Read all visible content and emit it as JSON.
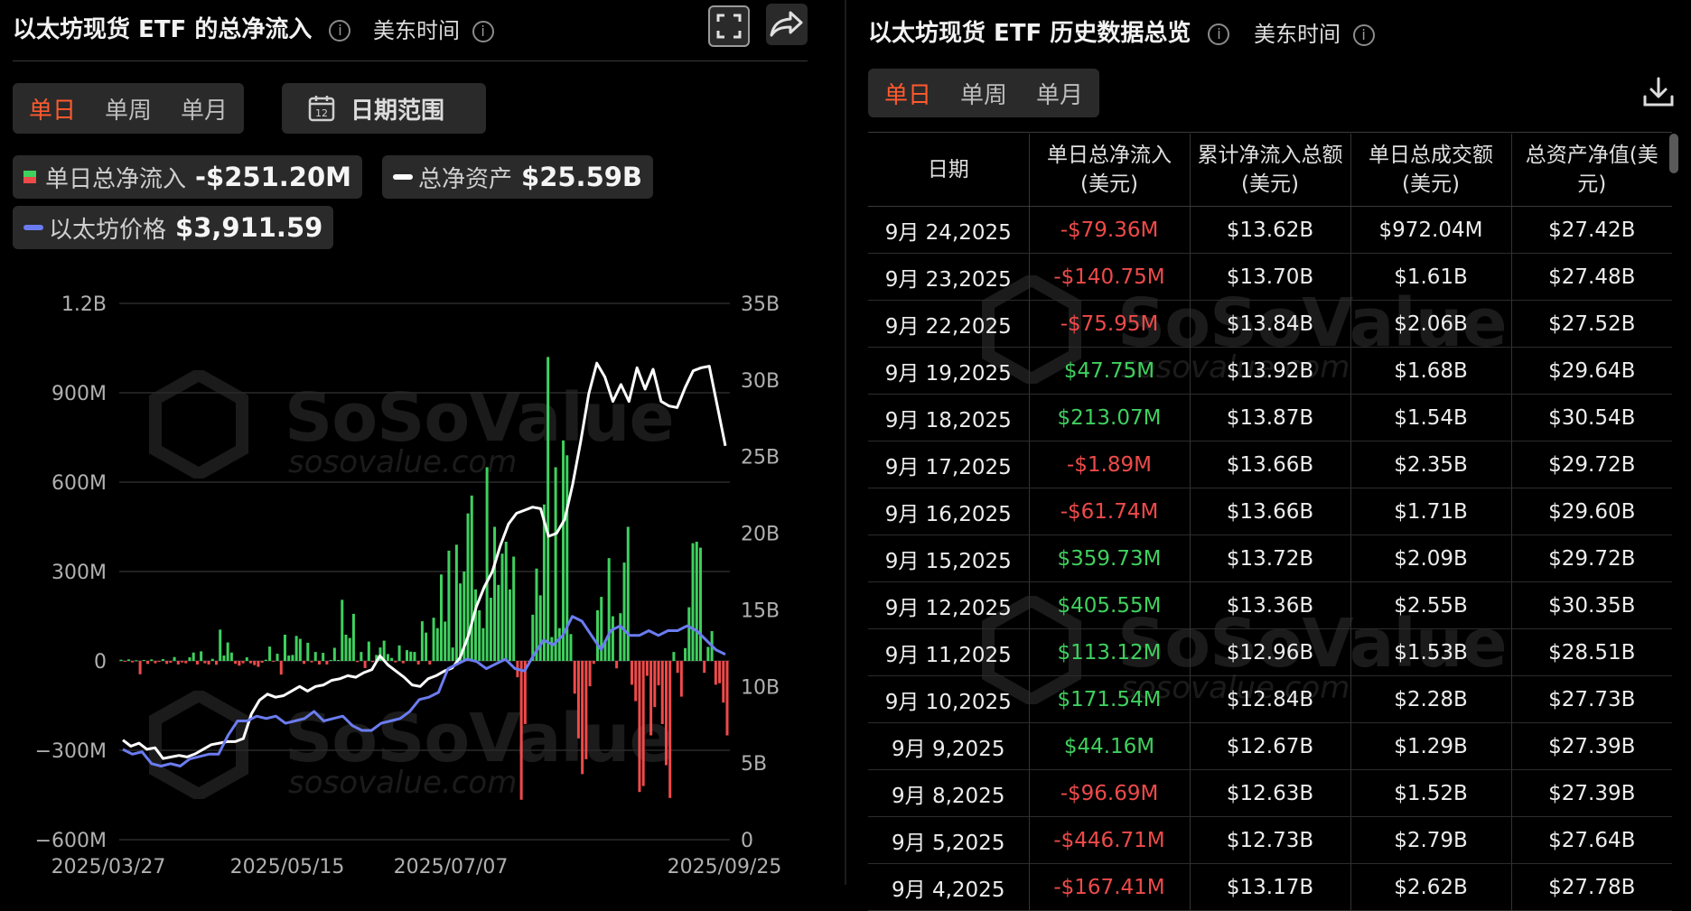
{
  "left": {
    "title": "以太坊现货 ETF 的总净流入",
    "timezone": "美东时间",
    "tabs": [
      "单日",
      "单周",
      "单月"
    ],
    "date_range_label": "日期范围",
    "calendar_icon_text": "12",
    "legend": {
      "inflow_label": "单日总净流入",
      "inflow_value": "-$251.20M",
      "assets_label": "总净资产",
      "assets_value": "$25.59B",
      "price_label": "以太坊价格",
      "price_value": "$3,911.59"
    },
    "watermark": {
      "brand": "SoSoValue",
      "url": "sosovalue.com"
    }
  },
  "right": {
    "title": "以太坊现货 ETF 历史数据总览",
    "timezone": "美东时间",
    "tabs": [
      "单日",
      "单周",
      "单月"
    ],
    "columns": [
      "日期",
      "单日总净流入(美元)",
      "累计净流入总额(美元)",
      "单日总成交额(美元)",
      "总资产净值(美元)"
    ],
    "rows": [
      [
        "9月 24,2025",
        "-$79.36M",
        "$13.62B",
        "$972.04M",
        "$27.42B"
      ],
      [
        "9月 23,2025",
        "-$140.75M",
        "$13.70B",
        "$1.61B",
        "$27.48B"
      ],
      [
        "9月 22,2025",
        "-$75.95M",
        "$13.84B",
        "$2.06B",
        "$27.52B"
      ],
      [
        "9月 19,2025",
        "$47.75M",
        "$13.92B",
        "$1.68B",
        "$29.64B"
      ],
      [
        "9月 18,2025",
        "$213.07M",
        "$13.87B",
        "$1.54B",
        "$30.54B"
      ],
      [
        "9月 17,2025",
        "-$1.89M",
        "$13.66B",
        "$2.35B",
        "$29.72B"
      ],
      [
        "9月 16,2025",
        "-$61.74M",
        "$13.66B",
        "$1.71B",
        "$29.60B"
      ],
      [
        "9月 15,2025",
        "$359.73M",
        "$13.72B",
        "$2.09B",
        "$29.72B"
      ],
      [
        "9月 12,2025",
        "$405.55M",
        "$13.36B",
        "$2.55B",
        "$30.35B"
      ],
      [
        "9月 11,2025",
        "$113.12M",
        "$12.96B",
        "$1.53B",
        "$28.51B"
      ],
      [
        "9月 10,2025",
        "$171.54M",
        "$12.84B",
        "$2.28B",
        "$27.73B"
      ],
      [
        "9月 9,2025",
        "$44.16M",
        "$12.67B",
        "$1.29B",
        "$27.39B"
      ],
      [
        "9月 8,2025",
        "-$96.69M",
        "$12.63B",
        "$1.52B",
        "$27.39B"
      ],
      [
        "9月 5,2025",
        "-$446.71M",
        "$12.73B",
        "$2.79B",
        "$27.64B"
      ],
      [
        "9月 4,2025",
        "-$167.41M",
        "$13.17B",
        "$2.62B",
        "$27.78B"
      ]
    ]
  },
  "colors": {
    "accent": "#ff5a2e",
    "positive": "#3fd05e",
    "negative": "#ef4a4a",
    "assets_line": "#ffffff",
    "price_line": "#6b7cf0",
    "background": "#000000",
    "control_bg": "#2a2a2a"
  },
  "chart_data": {
    "type": "bar",
    "x_tick_labels": [
      "2025/03/27",
      "2025/05/15",
      "2025/07/07",
      "2025/09/25"
    ],
    "left_axis": {
      "ticks": [
        "1.2B",
        "900M",
        "600M",
        "300M",
        "0",
        "−300M",
        "−600M"
      ],
      "ylim": [
        -600000000,
        1200000000
      ]
    },
    "right_axis": {
      "ticks": [
        "35B",
        "30B",
        "25B",
        "20B",
        "15B",
        "10B",
        "5B",
        "0"
      ],
      "ylim": [
        0,
        35000000000
      ]
    },
    "grid": true,
    "series": [
      {
        "name": "单日总净流入",
        "kind": "bar",
        "axis": "left",
        "unit": "M USD",
        "values": [
          4,
          -3,
          5,
          -5,
          2,
          -45,
          3,
          -10,
          5,
          -8,
          -2,
          6,
          -10,
          -6,
          13,
          -12,
          -5,
          -8,
          12,
          28,
          -12,
          32,
          -8,
          -12,
          7,
          -13,
          105,
          18,
          62,
          28,
          -10,
          -16,
          -8,
          12,
          -8,
          -14,
          -20,
          -6,
          4,
          48,
          -3,
          24,
          -46,
          88,
          18,
          20,
          84,
          74,
          -10,
          61,
          -5,
          30,
          -12,
          27,
          -12,
          3,
          44,
          3,
          205,
          88,
          77,
          158,
          -4,
          30,
          -24,
          65,
          -4,
          20,
          45,
          68,
          23,
          10,
          -5,
          52,
          -8,
          36,
          31,
          30,
          -12,
          133,
          95,
          -12,
          145,
          110,
          290,
          132,
          370,
          45,
          390,
          260,
          300,
          495,
          555,
          240,
          170,
          110,
          650,
          212,
          450,
          255,
          360,
          400,
          240,
          350,
          -55,
          -466,
          -212,
          -2,
          155,
          310,
          220,
          525,
          1020,
          80,
          650,
          110,
          740,
          690,
          90,
          -110,
          -260,
          -380,
          -330,
          -85,
          -10,
          170,
          215,
          70,
          345,
          150,
          -25,
          160,
          330,
          450,
          -80,
          -135,
          -440,
          -420,
          -50,
          -250,
          -155,
          -82,
          -212,
          -350,
          -460,
          30,
          -40,
          -120,
          43,
          180,
          395,
          400,
          380,
          -40,
          47,
          100,
          -80,
          -75,
          -140,
          -250
        ]
      },
      {
        "name": "总净资产",
        "kind": "line",
        "axis": "right",
        "unit": "B USD",
        "values": [
          6.5,
          6.1,
          6.3,
          5.9,
          6.0,
          5.3,
          5.4,
          5.5,
          5.4,
          5.6,
          5.9,
          6.2,
          6.3,
          6.4,
          6.4,
          6.6,
          8.2,
          9.1,
          9.5,
          9.3,
          9.4,
          9.7,
          10.0,
          9.7,
          10.0,
          10.1,
          10.4,
          10.5,
          10.7,
          10.6,
          10.9,
          11.1,
          12.0,
          11.4,
          11.0,
          10.6,
          10.1,
          10.0,
          10.5,
          10.7,
          11.0,
          11.2,
          11.9,
          13.3,
          15.2,
          16.5,
          17.5,
          19.2,
          20.6,
          21.3,
          21.5,
          21.7,
          21.6,
          19.8,
          20.0,
          20.9,
          23.2,
          26.0,
          29.1,
          31.1,
          30.2,
          28.6,
          29.7,
          28.6,
          30.8,
          29.4,
          30.7,
          28.6,
          28.3,
          28.2,
          29.5,
          30.6,
          30.8,
          30.9,
          28.3,
          25.7
        ]
      },
      {
        "name": "以太坊价格",
        "kind": "line",
        "axis": "right",
        "unit": "k USD",
        "values": [
          1.9,
          1.8,
          1.85,
          1.6,
          1.55,
          1.6,
          1.55,
          1.7,
          1.75,
          1.8,
          1.8,
          2.2,
          2.5,
          2.5,
          2.6,
          2.55,
          2.6,
          2.45,
          2.5,
          2.55,
          2.7,
          2.5,
          2.55,
          2.6,
          2.4,
          2.3,
          2.3,
          2.45,
          2.5,
          2.55,
          2.7,
          2.95,
          3.0,
          3.1,
          3.6,
          3.7,
          3.8,
          3.75,
          3.6,
          3.7,
          3.8,
          3.6,
          3.55,
          3.9,
          4.2,
          4.1,
          4.3,
          4.7,
          4.6,
          4.3,
          4.0,
          4.4,
          4.5,
          4.3,
          4.3,
          4.4,
          4.3,
          4.4,
          4.4,
          4.5,
          4.4,
          4.2,
          4.0,
          3.9
        ]
      }
    ]
  }
}
